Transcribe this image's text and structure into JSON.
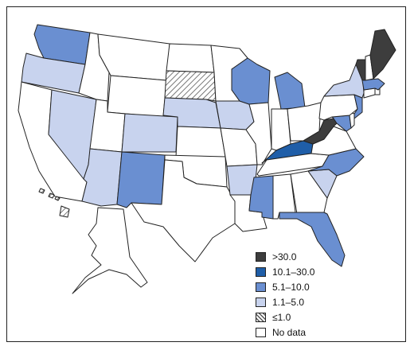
{
  "colors": {
    "gt30": "#3d3d3d",
    "c10_30": "#1f5ea8",
    "c5_10": "#6a8fd1",
    "c1_5": "#c8d3ee",
    "le1_hatch": "#bdbdbd",
    "nodata": "#ffffff",
    "border": "#222222"
  },
  "legend": {
    "items": [
      {
        "label": ">30.0",
        "category": "gt30"
      },
      {
        "label": "10.1–30.0",
        "category": "c10_30"
      },
      {
        "label": "5.1–10.0",
        "category": "c5_10"
      },
      {
        "label": "1.1–5.0",
        "category": "c1_5"
      },
      {
        "label": "≤1.0",
        "category": "le1"
      },
      {
        "label": "No data",
        "category": "nodata"
      }
    ]
  },
  "states": {
    "WA": "c5_10",
    "OR": "c1_5",
    "CA": "nodata",
    "NV": "c1_5",
    "ID": "nodata",
    "MT": "nodata",
    "WY": "nodata",
    "UT": "nodata",
    "AZ": "c1_5",
    "CO": "c1_5",
    "NM": "c5_10",
    "ND": "nodata",
    "SD": "le1",
    "NE": "c1_5",
    "KS": "nodata",
    "OK": "nodata",
    "TX": "nodata",
    "MN": "nodata",
    "IA": "c1_5",
    "MO": "nodata",
    "AR": "c1_5",
    "LA": "nodata",
    "WI": "c5_10",
    "IL": "nodata",
    "MI": "c5_10",
    "IN": "nodata",
    "OH": "nodata",
    "KY": "c10_30",
    "TN": "nodata",
    "MS": "c5_10",
    "AL": "nodata",
    "GA": "nodata",
    "FL": "c5_10",
    "SC": "c1_5",
    "NC": "c5_10",
    "VA": "nodata",
    "WV": "gt30",
    "MD": "c5_10",
    "DE": "nodata",
    "PA": "nodata",
    "NJ": "c5_10",
    "NY": "c1_5",
    "CT": "nodata",
    "RI": "nodata",
    "MA": "c5_10",
    "VT": "gt30",
    "NH": "nodata",
    "ME": "gt30",
    "AK": "nodata",
    "HI": "le1"
  }
}
